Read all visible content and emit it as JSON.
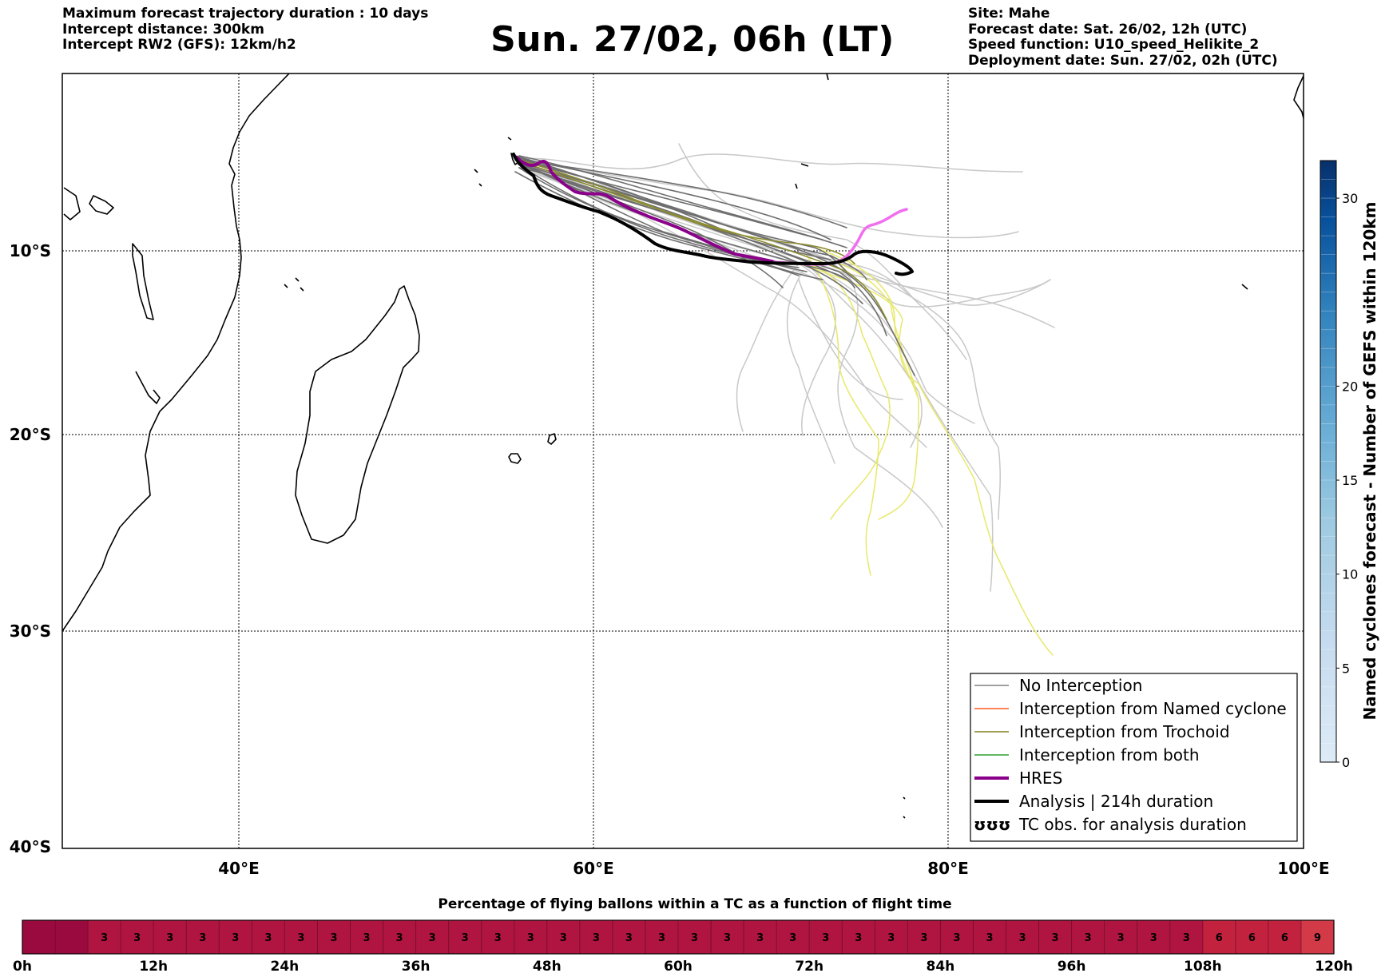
{
  "header": {
    "left_lines": [
      "Maximum forecast trajectory duration : 10 days",
      "Intercept distance: 300km",
      "Intercept RW2 (GFS):  12km/h2"
    ],
    "title": "Sun. 27/02, 06h (LT)",
    "right_lines": [
      "Site: Mahe",
      "Forecast date: Sat. 26/02, 12h (UTC)",
      "Speed function: U10_speed_Helikite_2",
      "Deployment date: Sun. 27/02, 02h (UTC)"
    ]
  },
  "map": {
    "lon_range": [
      30,
      100
    ],
    "lat_range": [
      -40,
      1
    ],
    "lon_ticks": [
      "40°E",
      "60°E",
      "80°E",
      "100°E"
    ],
    "lat_ticks": [
      "10°S",
      "20°S",
      "30°S",
      "40°S"
    ],
    "legend": [
      {
        "label": "No Interception",
        "color": "#808080",
        "style": "line-thin"
      },
      {
        "label": "Interception from Named cyclone",
        "color": "#ff5a1f",
        "style": "line-thin"
      },
      {
        "label": "Interception from Trochoid",
        "color": "#808020",
        "style": "line-thin"
      },
      {
        "label": "Interception from both",
        "color": "#2ca02c",
        "style": "line-thin"
      },
      {
        "label": "HRES",
        "color": "#8b008b",
        "style": "line-thick"
      },
      {
        "label": "Analysis | 214h duration",
        "color": "#000000",
        "style": "line-thick"
      },
      {
        "label": "TC obs. for analysis duration",
        "color": "#000000",
        "style": "symbol"
      }
    ]
  },
  "colorbar": {
    "label": "Named cyclones forecast - Number of GEFS within 120km",
    "ticks": [
      "0",
      "5",
      "10",
      "15",
      "20",
      "30"
    ],
    "tick_values": [
      0,
      5,
      10,
      15,
      20,
      30
    ],
    "max": 32
  },
  "percentage_bar": {
    "title": "Percentage of flying ballons within a TC as a function of flight time",
    "cells": [
      "",
      "",
      "3",
      "3",
      "3",
      "3",
      "3",
      "3",
      "3",
      "3",
      "3",
      "3",
      "3",
      "3",
      "3",
      "3",
      "3",
      "3",
      "3",
      "3",
      "3",
      "3",
      "3",
      "3",
      "3",
      "3",
      "3",
      "3",
      "3",
      "3",
      "3",
      "3",
      "3",
      "3",
      "3",
      "3",
      "6",
      "6",
      "6",
      "9"
    ],
    "hour_labels": [
      "0h",
      "12h",
      "24h",
      "36h",
      "48h",
      "60h",
      "72h",
      "84h",
      "96h",
      "108h",
      "120h"
    ]
  }
}
